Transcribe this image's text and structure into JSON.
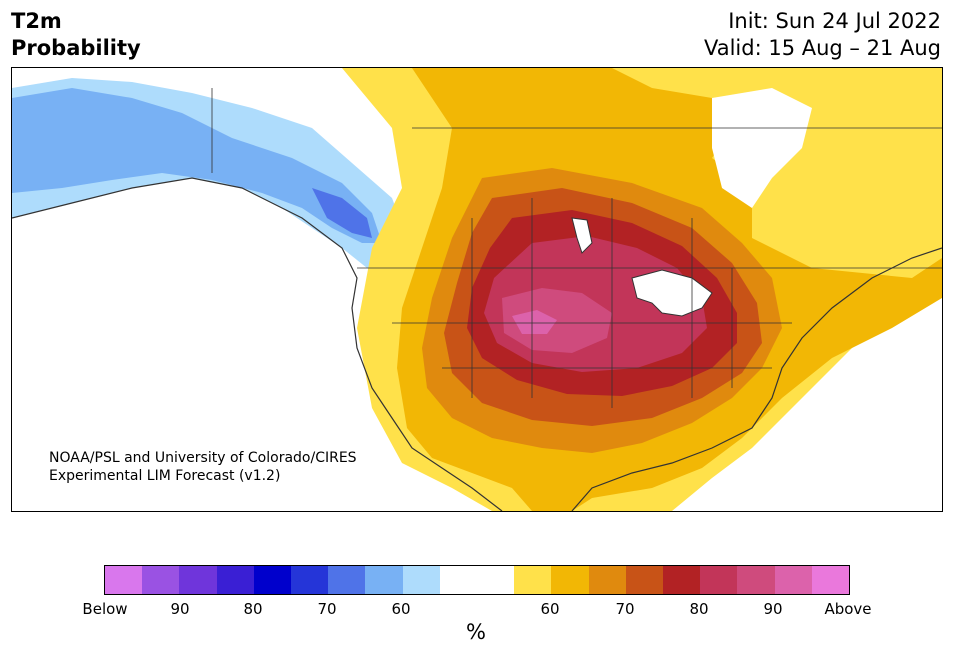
{
  "header": {
    "variable": "T2m",
    "product": "Probability",
    "init": "Init: Sun 24 Jul 2022",
    "valid": "Valid: 15 Aug – 21 Aug"
  },
  "map": {
    "region": "North America (contiguous US, southern Canada, Alaska, northern Mexico)",
    "highlight": "Strongest above-normal probabilities centered over the central Plains",
    "below_normal_region": "Alaska and Pacific Northwest coast"
  },
  "credit": {
    "line1": "NOAA/PSL and University of Colorado/CIRES",
    "line2": "Experimental LIM Forecast (v1.2)"
  },
  "colorbar": {
    "unit": "%",
    "colors": [
      "#d977ed",
      "#9a52e3",
      "#6f35db",
      "#3a1fd4",
      "#0000cc",
      "#2535d8",
      "#4f73e8",
      "#78b1f4",
      "#aedcfc",
      "#ffffff",
      "#ffffff",
      "#ffe14a",
      "#f2b705",
      "#e08a0e",
      "#c85317",
      "#b22224",
      "#c23559",
      "#cf4b7d",
      "#dc62ab",
      "#ea78dc"
    ],
    "tick_labels": [
      "Below",
      "90",
      "80",
      "70",
      "60",
      "60",
      "70",
      "80",
      "90",
      "Above"
    ]
  }
}
